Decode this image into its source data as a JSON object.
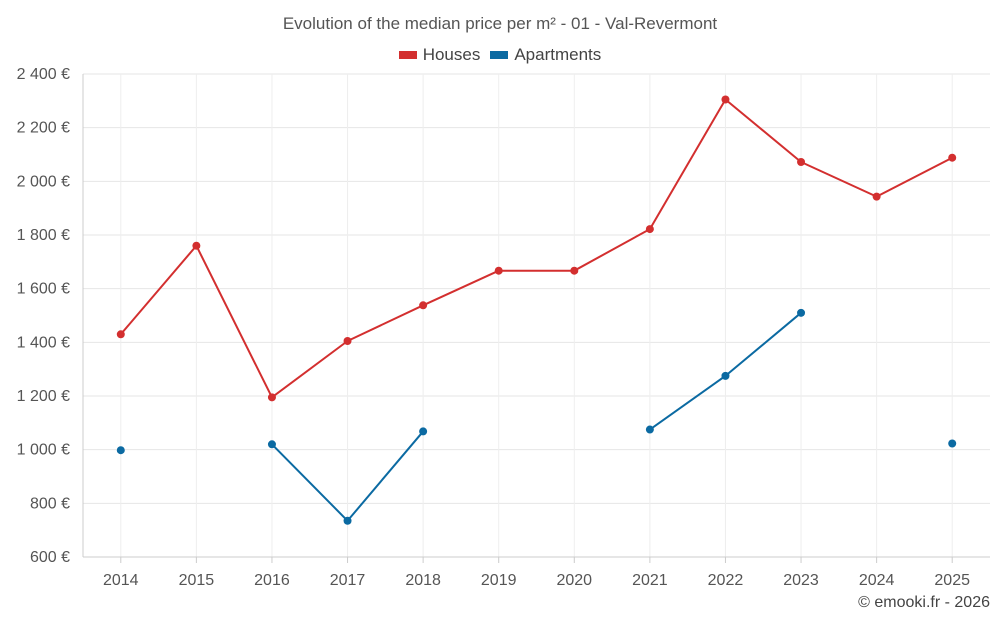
{
  "chart_data": {
    "type": "line",
    "title": "Evolution of the median price per m² - 01 - Val-Revermont",
    "x": [
      "2014",
      "2015",
      "2016",
      "2017",
      "2018",
      "2019",
      "2020",
      "2021",
      "2022",
      "2023",
      "2024",
      "2025"
    ],
    "ylim": [
      600,
      2400
    ],
    "yticks": [
      600,
      800,
      1000,
      1200,
      1400,
      1600,
      1800,
      2000,
      2200,
      2400
    ],
    "ytick_labels": [
      "600 €",
      "800 €",
      "1 000 €",
      "1 200 €",
      "1 400 €",
      "1 600 €",
      "1 800 €",
      "2 000 €",
      "2 200 €",
      "2 400 €"
    ],
    "grid": true,
    "legend_position": "top-center",
    "series": [
      {
        "name": "Houses",
        "color": "#d32f2f",
        "values": [
          1430,
          1760,
          1195,
          1405,
          1538,
          1667,
          1667,
          1822,
          2305,
          2072,
          1943,
          2088
        ]
      },
      {
        "name": "Apartments",
        "color": "#0b6aa2",
        "values": [
          998,
          null,
          1020,
          735,
          1068,
          null,
          null,
          1075,
          1275,
          1510,
          null,
          1023
        ]
      }
    ]
  },
  "footer": {
    "copyright": "© emooki.fr - 2026"
  }
}
